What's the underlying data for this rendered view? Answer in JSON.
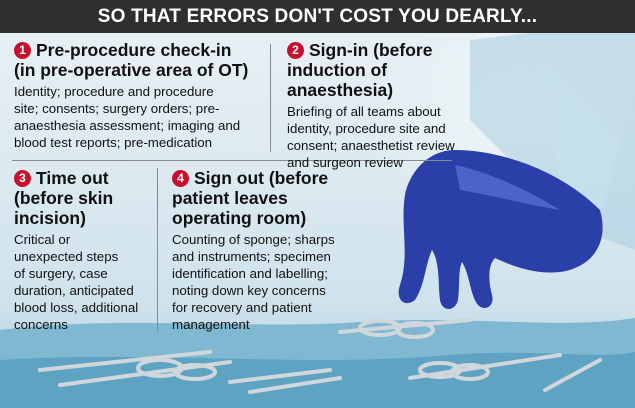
{
  "header": {
    "title": "SO THAT ERRORS DON'T COST YOU DEARLY..."
  },
  "steps": [
    {
      "number": "1",
      "title_line1": "Pre-procedure check-in",
      "title_line2": "(in pre-operative area of OT)",
      "body": [
        "Identity; procedure and procedure",
        "site; consents; surgery orders; pre-",
        "anaesthesia assessment; imaging and",
        "blood test reports; pre-medication"
      ]
    },
    {
      "number": "2",
      "title_line1": "Sign-in (before",
      "title_line2": "induction of anaesthesia)",
      "body": [
        "Briefing of all teams about",
        "identity, procedure site and",
        "consent; anaesthetist review",
        "and surgeon review"
      ]
    },
    {
      "number": "3",
      "title_line1": "Time out",
      "title_line2": "(before skin",
      "title_line3": "incision)",
      "body": [
        "Critical or",
        "unexpected steps",
        "of surgery, case",
        "duration, anticipated",
        "blood loss, additional",
        "concerns"
      ]
    },
    {
      "number": "4",
      "title_line1": "Sign out (before",
      "title_line2": "patient leaves",
      "title_line3": "operating room)",
      "body": [
        "Counting of sponge; sharps",
        "and instruments; specimen",
        "identification and labelling;",
        "noting down key concerns",
        "for recovery and patient",
        "management"
      ]
    }
  ],
  "colors": {
    "header_bg": "#2f2f2f",
    "badge": "#c8102e",
    "glove": "#2b3fa8",
    "drape": "#7fb8d0"
  }
}
